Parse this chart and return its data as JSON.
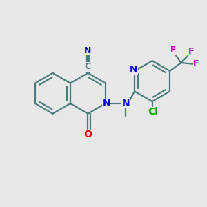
{
  "background_color": "#e8e8e8",
  "bond_color": "#4a7c7c",
  "N_color": "#0000dd",
  "O_color": "#dd0000",
  "Cl_color": "#00aa00",
  "F_color": "#cc00cc",
  "line_width": 1.6,
  "figsize": [
    3.0,
    3.0
  ],
  "dpi": 100,
  "xlim": [
    0,
    10
  ],
  "ylim": [
    0,
    10
  ]
}
